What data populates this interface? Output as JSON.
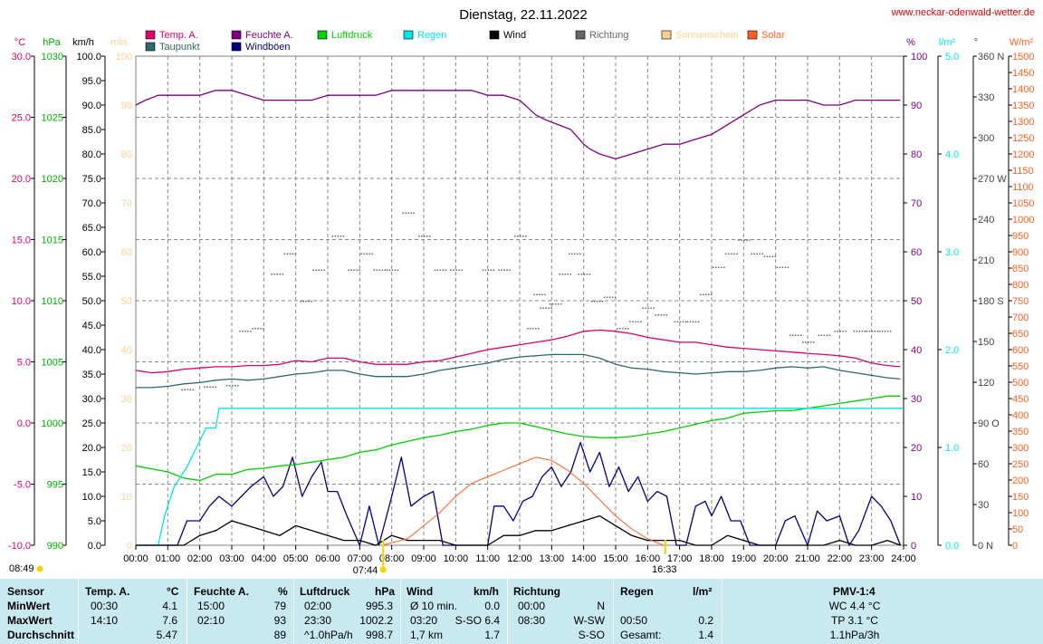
{
  "title": "Dienstag, 22.11.2022",
  "website": "www.neckar-odenwald-wetter.de",
  "legend": [
    {
      "label": "Temp. A.",
      "color": "#e0006a"
    },
    {
      "label": "Taupunkt",
      "color": "#2e6a6a"
    },
    {
      "label": "Feuchte A.",
      "color": "#800080"
    },
    {
      "label": "Windböen",
      "color": "#000080"
    },
    {
      "label": "Luftdruck",
      "color": "#00d000"
    },
    {
      "label": "Regen",
      "color": "#00e6e6"
    },
    {
      "label": "Wind",
      "color": "#000000"
    },
    {
      "label": "Richtung",
      "color": "#666666"
    },
    {
      "label": "Sonnenschein",
      "color": "#ffd090"
    },
    {
      "label": "Solar",
      "color": "#ff6020"
    }
  ],
  "axes": {
    "temp": {
      "unit": "°C",
      "ticks": [
        "30.0",
        "25.0",
        "20.0",
        "15.0",
        "10.0",
        "5.0",
        "0.0",
        "-5.0",
        "-10.0"
      ],
      "range": [
        -10,
        30
      ],
      "color": "#e0006a"
    },
    "pressure": {
      "unit": "hPa",
      "ticks": [
        "1030",
        "1025",
        "1020",
        "1015",
        "1010",
        "1005",
        "1000",
        "995",
        "990"
      ],
      "range": [
        990,
        1030
      ],
      "color": "#00b000"
    },
    "wind": {
      "unit": "km/h",
      "ticks": [
        "100.0",
        "95.0",
        "90.0",
        "85.0",
        "80.0",
        "75.0",
        "70.0",
        "65.0",
        "60.0",
        "55.0",
        "50.0",
        "45.0",
        "40.0",
        "35.0",
        "30.0",
        "25.0",
        "20.0",
        "15.0",
        "10.0",
        "5.0",
        "0.0"
      ],
      "range": [
        0,
        100
      ],
      "color": "#000000"
    },
    "sun": {
      "unit": "min",
      "ticks": [
        "100",
        "90",
        "80",
        "70",
        "60",
        "50",
        "40",
        "30",
        "20",
        "10",
        "0"
      ],
      "color": "#ffd090"
    },
    "humidity": {
      "unit": "%",
      "ticks": [
        "100",
        "90",
        "80",
        "70",
        "60",
        "50",
        "40",
        "30",
        "20",
        "10",
        "0"
      ],
      "range": [
        0,
        100
      ],
      "color": "#800080"
    },
    "rain": {
      "unit": "l/m²",
      "ticks": [
        "5.0",
        "4.0",
        "3.0",
        "2.0",
        "1.0",
        "0.0"
      ],
      "range": [
        0,
        5
      ],
      "color": "#00e6e6"
    },
    "direction": {
      "unit": "°",
      "ticks": [
        "360 N",
        "330",
        "300",
        "270 W",
        "240",
        "210",
        "180 S",
        "150",
        "120",
        "90 O",
        "60",
        "30",
        "0 N"
      ],
      "range": [
        0,
        360
      ],
      "color": "#444444"
    },
    "solar": {
      "unit": "W/m²",
      "ticks": [
        "1500",
        "1450",
        "1400",
        "1350",
        "1300",
        "1250",
        "1200",
        "1150",
        "1100",
        "1050",
        "1000",
        "950",
        "900",
        "850",
        "800",
        "750",
        "700",
        "650",
        "600",
        "550",
        "500",
        "450",
        "400",
        "350",
        "300",
        "250",
        "200",
        "150",
        "100",
        "50",
        "0"
      ],
      "range": [
        0,
        1500
      ],
      "color": "#ff6020"
    },
    "time": {
      "ticks": [
        "00:00",
        "01:00",
        "02:00",
        "03:00",
        "04:00",
        "05:00",
        "06:00",
        "07:00",
        "08:00",
        "09:00",
        "10:00",
        "11:00",
        "12:00",
        "13:00",
        "14:00",
        "15:00",
        "16:00",
        "17:00",
        "18:00",
        "19:00",
        "20:00",
        "21:00",
        "22:00",
        "23:00",
        "24:00"
      ]
    }
  },
  "markers": {
    "sunrise": "07:44",
    "sunset": "16:33",
    "moon": "08:49"
  },
  "chart_data": {
    "type": "line",
    "title": "Dienstag, 22.11.2022",
    "x_unit": "hours",
    "grid": true,
    "series": [
      {
        "name": "Temp. A.",
        "axis": "temp",
        "color": "#e0006a",
        "x": [
          0,
          0.5,
          1,
          1.5,
          2,
          2.5,
          3,
          3.5,
          4,
          4.5,
          5,
          5.5,
          6,
          6.5,
          7,
          7.5,
          8,
          8.5,
          9,
          9.5,
          10,
          10.5,
          11,
          11.5,
          12,
          12.5,
          13,
          13.5,
          14,
          14.5,
          15,
          15.5,
          16,
          16.5,
          17,
          17.5,
          18,
          18.5,
          19,
          19.5,
          20,
          20.5,
          21,
          21.5,
          22,
          22.5,
          23,
          23.5,
          23.9
        ],
        "values": [
          4.3,
          4.1,
          4.2,
          4.4,
          4.5,
          4.6,
          4.6,
          4.7,
          4.7,
          4.8,
          5.1,
          5.0,
          5.3,
          5.3,
          5.0,
          4.8,
          4.8,
          4.8,
          5.0,
          5.1,
          5.4,
          5.7,
          6.0,
          6.2,
          6.4,
          6.6,
          6.8,
          7.1,
          7.5,
          7.6,
          7.5,
          7.3,
          7.0,
          6.8,
          6.6,
          6.6,
          6.4,
          6.2,
          6.1,
          6.0,
          5.9,
          5.8,
          5.7,
          5.6,
          5.5,
          5.3,
          4.9,
          4.7,
          4.6
        ]
      },
      {
        "name": "Taupunkt",
        "axis": "temp",
        "color": "#2e6a6a",
        "x": [
          0,
          0.5,
          1,
          1.5,
          2,
          2.5,
          3,
          3.5,
          4,
          4.5,
          5,
          5.5,
          6,
          6.5,
          7,
          7.5,
          8,
          8.5,
          9,
          9.5,
          10,
          10.5,
          11,
          11.5,
          12,
          12.5,
          13,
          13.5,
          14,
          14.5,
          15,
          15.5,
          16,
          16.5,
          17,
          17.5,
          18,
          18.5,
          19,
          19.5,
          20,
          20.5,
          21,
          21.5,
          22,
          22.5,
          23,
          23.5,
          23.9
        ],
        "values": [
          2.9,
          2.9,
          3.0,
          3.2,
          3.3,
          3.5,
          3.6,
          3.5,
          3.6,
          3.8,
          4.0,
          4.1,
          4.3,
          4.3,
          4.0,
          3.8,
          3.8,
          3.8,
          4.0,
          4.3,
          4.5,
          4.7,
          4.9,
          5.2,
          5.4,
          5.5,
          5.6,
          5.6,
          5.6,
          5.3,
          4.8,
          4.5,
          4.4,
          4.2,
          4.1,
          4.0,
          4.1,
          4.2,
          4.2,
          4.3,
          4.5,
          4.6,
          4.5,
          4.6,
          4.3,
          4.1,
          3.9,
          3.7,
          3.6
        ]
      },
      {
        "name": "Feuchte A.",
        "axis": "humidity",
        "color": "#800080",
        "x": [
          0,
          0.3,
          0.7,
          1.5,
          2,
          2.5,
          3,
          3.5,
          4,
          4.5,
          5,
          5.5,
          6,
          6.5,
          7,
          7.5,
          8,
          8.5,
          9,
          9.5,
          10,
          10.5,
          11,
          11.5,
          12,
          12.5,
          12.8,
          13.2,
          13.6,
          14,
          14.2,
          14.5,
          15,
          15.5,
          16,
          16.5,
          17,
          17.5,
          18,
          18.5,
          19,
          19.5,
          20,
          20.5,
          21,
          21.5,
          22,
          22.5,
          23,
          23.5,
          23.9
        ],
        "values": [
          90,
          91,
          92,
          92,
          92,
          93,
          93,
          92,
          91,
          91,
          91,
          91,
          92,
          92,
          92,
          92,
          93,
          93,
          93,
          93,
          93,
          93,
          92,
          92,
          91,
          88,
          87,
          86,
          85,
          82,
          81,
          80,
          79,
          80,
          81,
          82,
          82,
          83,
          84,
          86,
          88,
          90,
          91,
          91,
          91,
          90,
          90,
          91,
          91,
          91,
          91
        ]
      },
      {
        "name": "Windböen",
        "axis": "wind",
        "color": "#000080",
        "x": [
          0,
          1,
          1.3,
          1.6,
          2,
          2.3,
          2.6,
          3,
          3.3,
          3.6,
          4,
          4.3,
          4.6,
          4.9,
          5.2,
          5.5,
          5.8,
          6,
          6.3,
          6.6,
          7,
          7.3,
          7.6,
          8,
          8.3,
          8.6,
          9,
          9.3,
          9.6,
          10,
          11,
          11.2,
          11.5,
          11.8,
          12.1,
          12.4,
          12.7,
          13,
          13.3,
          13.6,
          13.9,
          14.2,
          14.5,
          14.8,
          15.1,
          15.4,
          15.7,
          16,
          16.3,
          16.6,
          16.9,
          17.2,
          17.5,
          17.8,
          18,
          18.3,
          18.6,
          18.9,
          19.2,
          19.5,
          20,
          20.3,
          20.6,
          21,
          21.3,
          21.6,
          22,
          22.3,
          22.6,
          23,
          23.3,
          23.6,
          23.9
        ],
        "values": [
          0,
          0,
          0,
          5,
          5,
          8,
          10,
          8,
          10,
          12,
          14,
          10,
          12,
          18,
          10,
          14,
          17,
          11,
          11,
          6,
          0,
          8,
          0,
          10,
          18,
          8,
          10,
          11,
          0,
          0,
          0,
          8,
          8,
          5,
          9,
          10,
          14,
          16,
          12,
          15,
          21,
          15,
          19,
          12,
          16,
          11,
          14,
          9,
          11,
          10,
          0,
          0,
          8,
          9,
          6,
          10,
          5,
          5,
          0,
          0,
          0,
          5,
          6,
          0,
          7,
          5,
          6,
          0,
          3,
          10,
          8,
          5,
          0
        ]
      },
      {
        "name": "Luftdruck",
        "axis": "pressure",
        "color": "#00d000",
        "x": [
          0,
          1,
          1.5,
          2,
          2.5,
          3,
          3.5,
          4,
          4.5,
          5,
          5.5,
          6,
          6.5,
          7,
          7.5,
          8,
          8.5,
          9,
          9.5,
          10,
          10.5,
          11,
          11.5,
          12,
          12.5,
          13,
          13.5,
          14,
          14.5,
          15,
          15.5,
          16,
          16.5,
          17,
          17.5,
          18,
          18.5,
          19,
          19.5,
          20,
          20.5,
          21,
          21.5,
          22,
          22.5,
          23,
          23.5,
          23.9
        ],
        "values": [
          996.5,
          996.0,
          995.5,
          995.3,
          995.8,
          995.8,
          996.2,
          996.3,
          996.5,
          996.6,
          996.8,
          997.0,
          997.2,
          997.6,
          997.8,
          998.2,
          998.5,
          998.8,
          999.0,
          999.3,
          999.5,
          999.8,
          1000.0,
          1000.0,
          999.7,
          999.4,
          999.1,
          998.9,
          998.8,
          998.8,
          998.9,
          999.1,
          999.3,
          999.6,
          999.9,
          1000.2,
          1000.4,
          1000.8,
          1000.9,
          1001.0,
          1001.0,
          1001.2,
          1001.4,
          1001.6,
          1001.8,
          1002.0,
          1002.2,
          1002.2
        ]
      },
      {
        "name": "Regen",
        "axis": "rain",
        "color": "#00e6e6",
        "x": [
          0,
          0.7,
          0.9,
          1.2,
          1.6,
          1.9,
          2.2,
          2.5,
          2.6,
          3,
          24
        ],
        "values": [
          0,
          0,
          0.3,
          0.6,
          0.8,
          1.0,
          1.2,
          1.2,
          1.4,
          1.4,
          1.4
        ]
      },
      {
        "name": "Wind",
        "axis": "wind",
        "color": "#000000",
        "x": [
          0,
          1,
          1.5,
          2,
          2.5,
          3,
          3.5,
          4,
          4.5,
          5,
          5.5,
          6,
          6.5,
          7,
          7.5,
          8,
          8.5,
          9,
          9.5,
          10,
          11,
          11.5,
          12,
          12.5,
          13,
          13.5,
          14,
          14.5,
          15,
          15.5,
          16,
          16.5,
          17,
          17.5,
          18,
          18.5,
          19,
          19.5,
          20,
          21,
          21.5,
          22,
          22.5,
          23,
          23.5,
          23.9
        ],
        "values": [
          0,
          0,
          0,
          2,
          3,
          5,
          4,
          3,
          2,
          4,
          3,
          2,
          1,
          1,
          0,
          2,
          1,
          1,
          1,
          0,
          0,
          2,
          2,
          3,
          3,
          4,
          5,
          6,
          4,
          2,
          1,
          1,
          1,
          0,
          0,
          2,
          1,
          0,
          0,
          0,
          0,
          1,
          0,
          0,
          1,
          0
        ]
      },
      {
        "name": "Solar",
        "axis": "solar",
        "color": "#ff6020",
        "x": [
          7.7,
          8.5,
          9,
          9.5,
          10,
          10.5,
          11,
          11.5,
          12,
          12.5,
          13,
          13.5,
          14,
          14.5,
          15,
          15.5,
          16,
          16.5
        ],
        "values": [
          0,
          20,
          60,
          100,
          150,
          190,
          210,
          230,
          250,
          270,
          260,
          230,
          190,
          140,
          90,
          50,
          20,
          0
        ]
      },
      {
        "name": "Richtung",
        "axis": "direction",
        "color": "#666666",
        "x": [
          1.6,
          2.3,
          3,
          3.4,
          3.8,
          4.4,
          4.8,
          5.3,
          5.7,
          6.3,
          6.8,
          7.2,
          7.6,
          8,
          8.5,
          9,
          9.5,
          10,
          11,
          11.5,
          12,
          12.4,
          12.6,
          12.8,
          13.1,
          13.4,
          13.7,
          14,
          14.4,
          14.8,
          15.2,
          15.6,
          16,
          16.4,
          17,
          17.4,
          17.8,
          18.2,
          18.6,
          19,
          19.4,
          19.8,
          20.2,
          20.6,
          21,
          21.5,
          22,
          22.6,
          23,
          23.4
        ],
        "values": [
          115,
          117,
          118,
          158,
          160,
          200,
          215,
          180,
          203,
          228,
          203,
          215,
          203,
          203,
          245,
          228,
          203,
          203,
          203,
          203,
          228,
          160,
          185,
          175,
          178,
          200,
          215,
          200,
          180,
          183,
          160,
          165,
          175,
          170,
          165,
          165,
          185,
          205,
          215,
          225,
          215,
          213,
          205,
          155,
          150,
          155,
          158,
          158,
          158,
          158
        ]
      }
    ]
  },
  "table": {
    "headers": [
      "Sensor",
      "Temp. A.",
      "°C",
      "Feuchte A.",
      "%",
      "Luftdruck",
      "hPa",
      "Wind",
      "km/h",
      "Richtung",
      "Regen",
      "l/m²",
      "PMV-1:4"
    ],
    "rows": [
      {
        "label": "MinWert",
        "temp_time": "00:30",
        "temp": "4.1",
        "hum_time": "15:00",
        "hum": "79",
        "press_time": "02:00",
        "press": "995.3",
        "wind_time": "Ø 10 min.",
        "wind": "0.0",
        "dir_time": "00:00",
        "dir": "N",
        "rain_time": "",
        "rain": "",
        "pmv": "WC 4.4 °C"
      },
      {
        "label": "MaxWert",
        "temp_time": "14:10",
        "temp": "7.6",
        "hum_time": "02:10",
        "hum": "93",
        "press_time": "23:30",
        "press": "1002.2",
        "wind_time": "03:20",
        "wind": "S-SO 6.4",
        "dir_time": "08:30",
        "dir": "W-SW",
        "rain_time": "00:50",
        "rain": "0.2",
        "pmv": "TP 3.1 °C"
      },
      {
        "label": "Durchschnitt",
        "temp_time": "",
        "temp": "5.47",
        "hum_time": "",
        "hum": "89",
        "press_time": "^1.0hPa/h",
        "press": "998.7",
        "wind_time": "1,7 km",
        "wind": "1.7",
        "dir_time": "",
        "dir": "S-SO",
        "rain_time": "Gesamt:",
        "rain": "1.4",
        "pmv": "1.1hPa/3h"
      }
    ]
  }
}
